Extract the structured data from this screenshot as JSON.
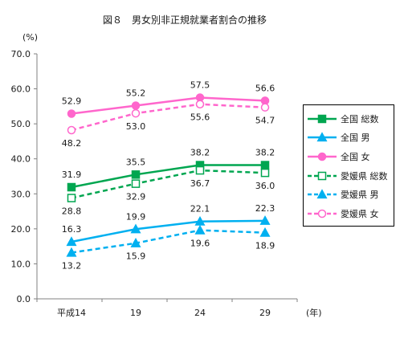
{
  "chart_data": {
    "type": "line",
    "title": "図８　男女別非正規就業者割合の推移",
    "ylabel": "(%)",
    "xlabel": "(年)",
    "categories": [
      "平成14",
      "19",
      "24",
      "29"
    ],
    "ylim": [
      0,
      70
    ],
    "yticks": [
      "0.0",
      "10.0",
      "20.0",
      "30.0",
      "40.0",
      "50.0",
      "60.0",
      "70.0"
    ],
    "grid": false,
    "legend_position": "right",
    "series": [
      {
        "name": "全国 総数",
        "values": [
          31.9,
          35.5,
          38.2,
          38.2
        ],
        "color": "#00a650",
        "dash": "solid",
        "marker": "square",
        "filled": true,
        "label_side": "above"
      },
      {
        "name": "全国 男",
        "values": [
          16.3,
          19.9,
          22.1,
          22.3
        ],
        "color": "#00b0f0",
        "dash": "solid",
        "marker": "triangle",
        "filled": true,
        "label_side": "above"
      },
      {
        "name": "全国 女",
        "values": [
          52.9,
          55.2,
          57.5,
          56.6
        ],
        "color": "#ff66cc",
        "dash": "solid",
        "marker": "circle",
        "filled": true,
        "label_side": "above"
      },
      {
        "name": "愛媛県 総数",
        "values": [
          28.8,
          32.9,
          36.7,
          36.0
        ],
        "color": "#00a650",
        "dash": "dashed",
        "marker": "square",
        "filled": false,
        "label_side": "below"
      },
      {
        "name": "愛媛県 男",
        "values": [
          13.2,
          15.9,
          19.6,
          18.9
        ],
        "color": "#00b0f0",
        "dash": "dashed",
        "marker": "triangle",
        "filled": true,
        "label_side": "below"
      },
      {
        "name": "愛媛県 女",
        "values": [
          48.2,
          53.0,
          55.6,
          54.7
        ],
        "color": "#ff66cc",
        "dash": "dashed",
        "marker": "circle",
        "filled": false,
        "label_side": "below"
      }
    ]
  }
}
